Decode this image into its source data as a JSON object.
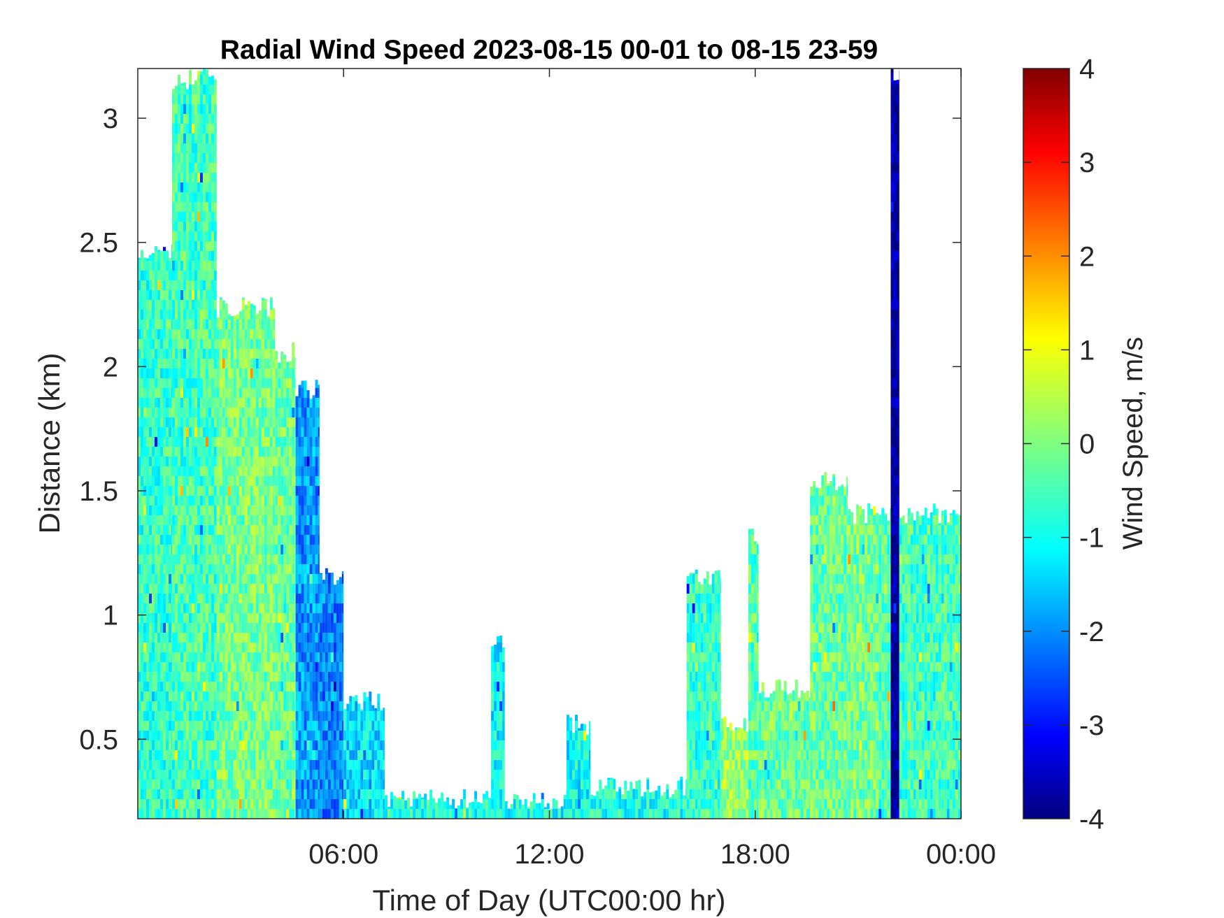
{
  "chart_data": {
    "type": "heatmap",
    "title": "Radial Wind Speed 2023-08-15 00-01 to 08-15 23-59",
    "xlabel": "Time of Day (UTC00:00 hr)",
    "ylabel": "Distance (km)",
    "xlim": [
      0,
      24
    ],
    "ylim": [
      0.18,
      3.2
    ],
    "x_ticks": [
      {
        "value": 6,
        "label": "06:00"
      },
      {
        "value": 12,
        "label": "12:00"
      },
      {
        "value": 18,
        "label": "18:00"
      },
      {
        "value": 24,
        "label": "00:00"
      }
    ],
    "y_ticks": [
      {
        "value": 0.5,
        "label": "0.5"
      },
      {
        "value": 1,
        "label": "1"
      },
      {
        "value": 1.5,
        "label": "1.5"
      },
      {
        "value": 2,
        "label": "2"
      },
      {
        "value": 2.5,
        "label": "2.5"
      },
      {
        "value": 3,
        "label": "3"
      }
    ],
    "colorbar": {
      "label": "Wind Speed, m/s",
      "colormap": "jet",
      "clim": [
        -4,
        4
      ],
      "ticks": [
        {
          "value": 4,
          "label": "4"
        },
        {
          "value": 3,
          "label": "3"
        },
        {
          "value": 2,
          "label": "2"
        },
        {
          "value": 1,
          "label": "1"
        },
        {
          "value": 0,
          "label": "0"
        },
        {
          "value": -1,
          "label": "-1"
        },
        {
          "value": -2,
          "label": "-2"
        },
        {
          "value": -3,
          "label": "-3"
        },
        {
          "value": -4,
          "label": "-4"
        }
      ]
    },
    "regions": [
      {
        "t0": 0.0,
        "t1": 1.0,
        "top_km": 2.5,
        "mean_ms": -0.6
      },
      {
        "t0": 1.0,
        "t1": 2.3,
        "top_km": 3.2,
        "mean_ms": -0.5
      },
      {
        "t0": 2.3,
        "t1": 4.0,
        "top_km": 2.28,
        "mean_ms": -0.1
      },
      {
        "t0": 4.0,
        "t1": 4.6,
        "top_km": 2.1,
        "mean_ms": -0.2
      },
      {
        "t0": 4.6,
        "t1": 5.3,
        "top_km": 1.95,
        "mean_ms": -1.8
      },
      {
        "t0": 5.3,
        "t1": 6.0,
        "top_km": 1.2,
        "mean_ms": -2.0
      },
      {
        "t0": 6.0,
        "t1": 7.2,
        "top_km": 0.7,
        "mean_ms": -1.2
      },
      {
        "t0": 7.2,
        "t1": 10.3,
        "top_km": 0.3,
        "mean_ms": -0.8
      },
      {
        "t0": 10.3,
        "t1": 10.7,
        "top_km": 0.95,
        "mean_ms": -1.0
      },
      {
        "t0": 10.7,
        "t1": 12.5,
        "top_km": 0.3,
        "mean_ms": -0.9
      },
      {
        "t0": 12.5,
        "t1": 13.2,
        "top_km": 0.6,
        "mean_ms": -1.0
      },
      {
        "t0": 13.2,
        "t1": 16.0,
        "top_km": 0.35,
        "mean_ms": -0.8
      },
      {
        "t0": 16.0,
        "t1": 17.0,
        "top_km": 1.2,
        "mean_ms": -0.6
      },
      {
        "t0": 17.0,
        "t1": 17.8,
        "top_km": 0.6,
        "mean_ms": 0.2
      },
      {
        "t0": 17.8,
        "t1": 18.1,
        "top_km": 1.35,
        "mean_ms": -0.4
      },
      {
        "t0": 18.1,
        "t1": 19.6,
        "top_km": 0.75,
        "mean_ms": -0.2
      },
      {
        "t0": 19.6,
        "t1": 20.7,
        "top_km": 1.58,
        "mean_ms": -0.2
      },
      {
        "t0": 20.7,
        "t1": 21.6,
        "top_km": 1.45,
        "mean_ms": -0.1
      },
      {
        "t0": 21.6,
        "t1": 21.95,
        "top_km": 1.45,
        "mean_ms": -0.4
      },
      {
        "t0": 21.95,
        "t1": 22.2,
        "top_km": 3.2,
        "mean_ms": -3.8
      },
      {
        "t0": 22.2,
        "t1": 24.0,
        "top_km": 1.45,
        "mean_ms": -0.5
      }
    ]
  }
}
